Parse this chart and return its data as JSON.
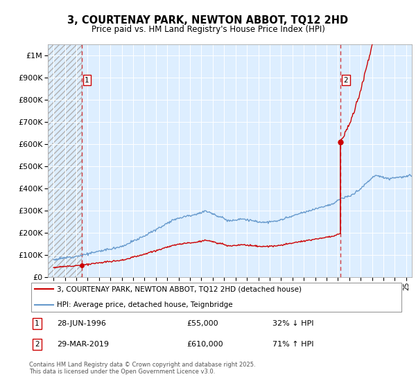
{
  "title": "3, COURTENAY PARK, NEWTON ABBOT, TQ12 2HD",
  "subtitle": "Price paid vs. HM Land Registry's House Price Index (HPI)",
  "legend_line1": "3, COURTENAY PARK, NEWTON ABBOT, TQ12 2HD (detached house)",
  "legend_line2": "HPI: Average price, detached house, Teignbridge",
  "sale1_date": 1996.49,
  "sale1_price": 55000,
  "sale2_date": 2019.24,
  "sale2_price": 610000,
  "footnote": "Contains HM Land Registry data © Crown copyright and database right 2025.\nThis data is licensed under the Open Government Licence v3.0.",
  "red_color": "#cc0000",
  "blue_color": "#6699cc",
  "background_color": "#ddeeff",
  "ylim": [
    0,
    1050000
  ],
  "xlim": [
    1993.5,
    2025.5
  ],
  "hpi_keypoints": [
    [
      1994.0,
      80000
    ],
    [
      1995.0,
      88000
    ],
    [
      1996.5,
      100000
    ],
    [
      1998.0,
      118000
    ],
    [
      2000.0,
      140000
    ],
    [
      2001.5,
      175000
    ],
    [
      2003.0,
      215000
    ],
    [
      2004.5,
      260000
    ],
    [
      2005.5,
      275000
    ],
    [
      2006.5,
      285000
    ],
    [
      2007.5,
      300000
    ],
    [
      2008.5,
      275000
    ],
    [
      2009.5,
      255000
    ],
    [
      2010.5,
      265000
    ],
    [
      2011.5,
      255000
    ],
    [
      2012.5,
      248000
    ],
    [
      2013.5,
      252000
    ],
    [
      2014.5,
      268000
    ],
    [
      2015.5,
      285000
    ],
    [
      2016.5,
      300000
    ],
    [
      2017.5,
      318000
    ],
    [
      2018.5,
      330000
    ],
    [
      2019.24,
      355000
    ],
    [
      2020.0,
      365000
    ],
    [
      2021.0,
      400000
    ],
    [
      2021.8,
      440000
    ],
    [
      2022.3,
      460000
    ],
    [
      2022.8,
      455000
    ],
    [
      2023.5,
      445000
    ],
    [
      2024.0,
      450000
    ],
    [
      2025.0,
      455000
    ],
    [
      2025.5,
      458000
    ]
  ],
  "prop_segment1_ratio": 0.48,
  "prop_segment2_ratio": 1.717,
  "prop_after_ratio_extra_annual": 0.13,
  "noise_seed": 12,
  "n_points": 500
}
